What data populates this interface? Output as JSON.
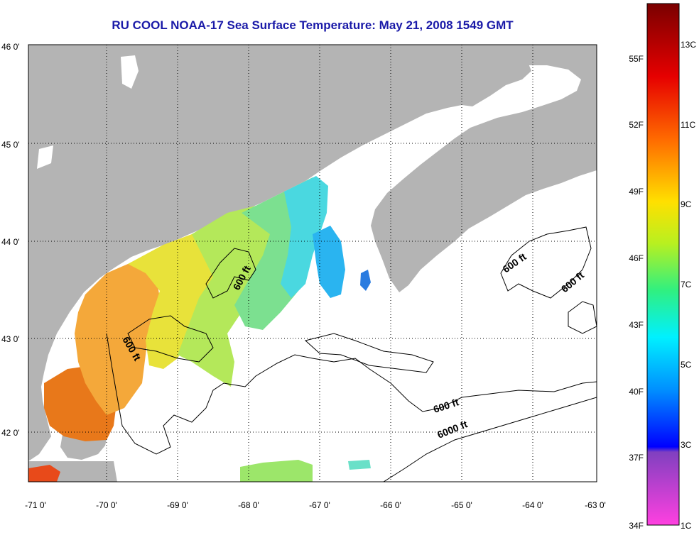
{
  "title": "RU COOL  NOAA-17  Sea Surface Temperature:  May 21, 2008 1549 GMT",
  "map": {
    "lon_labels": [
      "-71 0'",
      "-70 0'",
      "-69 0'",
      "-68 0'",
      "-67 0'",
      "-66 0'",
      "-65 0'",
      "-64 0'",
      "-63 0'"
    ],
    "lat_labels": [
      "46 0'",
      "45 0'",
      "44 0'",
      "43 0'",
      "42 0'"
    ],
    "contour_labels": [
      "600 ft",
      "600 ft",
      "600 ft",
      "600 ft",
      "600 ft",
      "6000 ft"
    ],
    "colors": {
      "land": "#b4b4b4",
      "ocean_no_data": "#ffffff",
      "grid": "#000000"
    }
  },
  "colorbar": {
    "fahrenheit_labels": [
      "55F",
      "52F",
      "49F",
      "46F",
      "43F",
      "40F",
      "37F",
      "34F"
    ],
    "celsius_labels": [
      "13C",
      "11C",
      "9C",
      "7C",
      "5C",
      "3C",
      "1C"
    ]
  }
}
